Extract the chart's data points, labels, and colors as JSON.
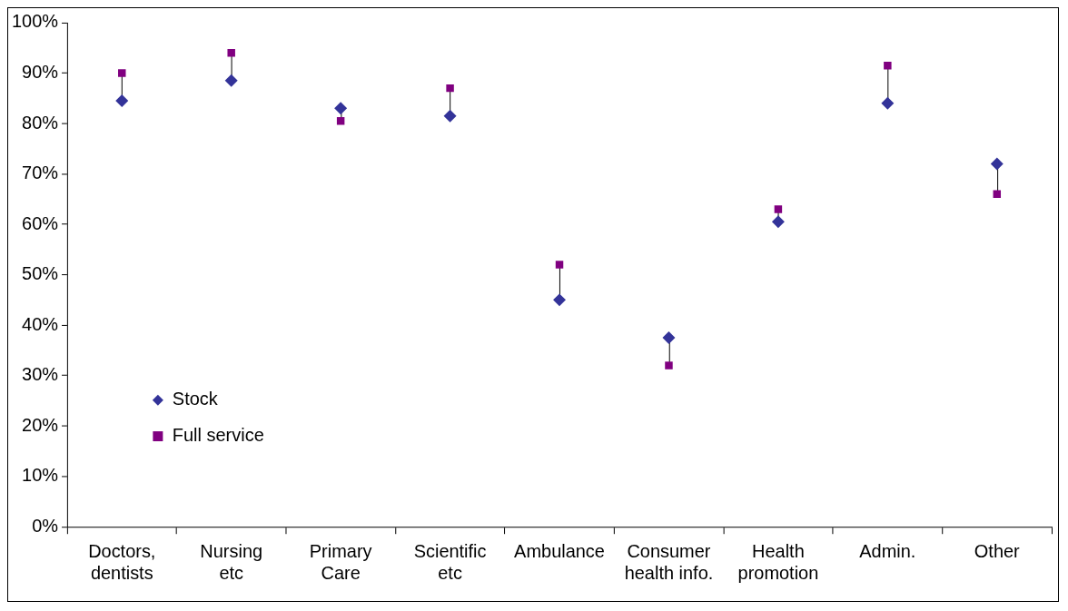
{
  "chart_data": {
    "type": "scatter",
    "categories": [
      "Doctors,\ndentists",
      "Nursing\netc",
      "Primary\nCare",
      "Scientific\netc",
      "Ambulance",
      "Consumer\nhealth info.",
      "Health\npromotion",
      "Admin.",
      "Other"
    ],
    "series": [
      {
        "name": "Stock",
        "color": "#333399",
        "marker": "diamond",
        "values": [
          84.5,
          88.5,
          83,
          81.5,
          45,
          37.5,
          60.5,
          84,
          72
        ]
      },
      {
        "name": "Full service",
        "color": "#800080",
        "marker": "square",
        "values": [
          90,
          94,
          80.5,
          87,
          52,
          32,
          63,
          91.5,
          66
        ]
      }
    ],
    "ylim": [
      0,
      100
    ],
    "yticks": [
      {
        "value": 0,
        "label": "0%"
      },
      {
        "value": 10,
        "label": "10%"
      },
      {
        "value": 20,
        "label": "20%"
      },
      {
        "value": 30,
        "label": "30%"
      },
      {
        "value": 40,
        "label": "40%"
      },
      {
        "value": 50,
        "label": "50%"
      },
      {
        "value": 60,
        "label": "60%"
      },
      {
        "value": 70,
        "label": "70%"
      },
      {
        "value": 80,
        "label": "80%"
      },
      {
        "value": 90,
        "label": "90%"
      },
      {
        "value": 100,
        "label": "100%"
      }
    ],
    "grid": false,
    "legend": "bottom left"
  }
}
